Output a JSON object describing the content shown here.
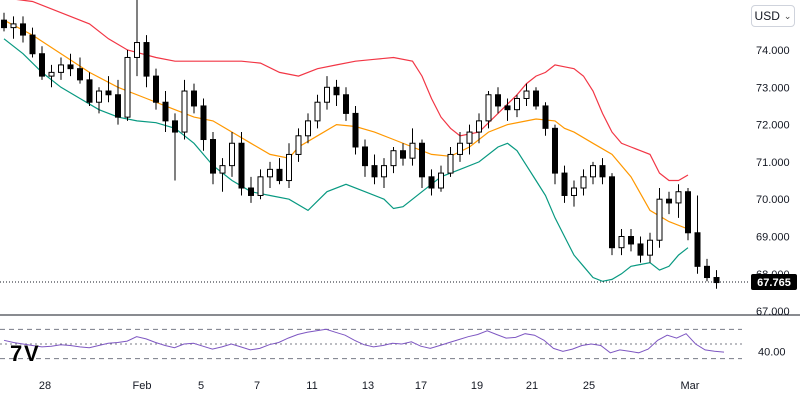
{
  "currency_selector": {
    "label": "USD",
    "chevron_icon": "chevron-down-icon"
  },
  "last_price": "67.765",
  "rsi": {
    "label": "40.00"
  },
  "colors": {
    "candle": "#000000",
    "upper_band": "#f23645",
    "middle_band": "#ff9800",
    "lower_band": "#089981",
    "rsi_line": "#7e57c2",
    "price_line": "#131722"
  },
  "chart_data": [
    {
      "type": "candlestick",
      "title": "",
      "indicators": [
        "Bollinger Bands (upper, middle, lower)"
      ],
      "y_ticks": [
        "74.000",
        "73.000",
        "72.000",
        "71.000",
        "70.000",
        "69.000",
        "68.000",
        "67.000"
      ],
      "ylim": [
        66.85,
        75.2
      ],
      "x_ticks": [
        "28",
        "Feb",
        "5",
        "7",
        "11",
        "13",
        "17",
        "19",
        "21",
        "25",
        "Mar"
      ],
      "grid": false,
      "current_value": 67.765,
      "series": [
        {
          "name": "upper",
          "color": "#f23645",
          "points": [
            [
              0,
              75.4
            ],
            [
              3,
              75.3
            ],
            [
              6,
              75.0
            ],
            [
              9,
              74.7
            ],
            [
              11,
              74.3
            ],
            [
              13,
              74.0
            ],
            [
              16,
              73.8
            ],
            [
              18,
              73.7
            ],
            [
              19,
              73.7
            ],
            [
              22,
              73.7
            ],
            [
              25,
              73.7
            ],
            [
              27,
              73.65
            ],
            [
              29,
              73.4
            ],
            [
              31,
              73.3
            ],
            [
              33,
              73.5
            ],
            [
              35,
              73.6
            ],
            [
              37,
              73.7
            ],
            [
              39,
              73.75
            ],
            [
              41,
              73.8
            ],
            [
              43,
              73.7
            ],
            [
              44,
              73.3
            ],
            [
              45,
              72.7
            ],
            [
              46,
              72.2
            ],
            [
              47,
              71.9
            ],
            [
              48,
              71.7
            ],
            [
              50,
              71.8
            ],
            [
              52,
              72.3
            ],
            [
              54,
              72.8
            ],
            [
              55,
              73.1
            ],
            [
              56,
              73.3
            ],
            [
              57,
              73.4
            ],
            [
              58,
              73.6
            ],
            [
              59,
              73.55
            ],
            [
              60,
              73.5
            ],
            [
              61,
              73.3
            ],
            [
              62,
              72.9
            ],
            [
              63,
              72.3
            ],
            [
              64,
              71.8
            ],
            [
              65,
              71.5
            ],
            [
              66,
              71.4
            ],
            [
              67,
              71.3
            ],
            [
              68,
              71.2
            ],
            [
              69,
              70.7
            ],
            [
              70,
              70.5
            ],
            [
              71,
              70.5
            ],
            [
              72,
              70.65
            ]
          ]
        },
        {
          "name": "middle",
          "color": "#ff9800",
          "points": [
            [
              0,
              74.8
            ],
            [
              3,
              74.4
            ],
            [
              6,
              73.9
            ],
            [
              9,
              73.4
            ],
            [
              12,
              73.0
            ],
            [
              15,
              72.7
            ],
            [
              18,
              72.4
            ],
            [
              20,
              72.2
            ],
            [
              22,
              72.1
            ],
            [
              24,
              71.8
            ],
            [
              26,
              71.5
            ],
            [
              28,
              71.2
            ],
            [
              30,
              71.1
            ],
            [
              31,
              71.4
            ],
            [
              33,
              71.7
            ],
            [
              35,
              72.0
            ],
            [
              37,
              71.95
            ],
            [
              39,
              71.8
            ],
            [
              41,
              71.6
            ],
            [
              43,
              71.4
            ],
            [
              45,
              71.2
            ],
            [
              47,
              71.15
            ],
            [
              49,
              71.4
            ],
            [
              51,
              71.8
            ],
            [
              53,
              72.0
            ],
            [
              55,
              72.1
            ],
            [
              56,
              72.15
            ],
            [
              58,
              72.1
            ],
            [
              59,
              71.9
            ],
            [
              60,
              71.8
            ],
            [
              62,
              71.5
            ],
            [
              64,
              71.2
            ],
            [
              66,
              70.6
            ],
            [
              68,
              69.7
            ],
            [
              70,
              69.4
            ],
            [
              72,
              69.2
            ]
          ]
        },
        {
          "name": "lower",
          "color": "#089981",
          "points": [
            [
              0,
              74.3
            ],
            [
              2,
              73.9
            ],
            [
              4,
              73.4
            ],
            [
              6,
              73.0
            ],
            [
              8,
              72.7
            ],
            [
              10,
              72.4
            ],
            [
              12,
              72.2
            ],
            [
              14,
              72.1
            ],
            [
              16,
              72.05
            ],
            [
              18,
              71.9
            ],
            [
              20,
              71.5
            ],
            [
              22,
              70.9
            ],
            [
              24,
              70.5
            ],
            [
              26,
              70.2
            ],
            [
              28,
              70.1
            ],
            [
              30,
              70.0
            ],
            [
              32,
              69.7
            ],
            [
              34,
              70.2
            ],
            [
              36,
              70.4
            ],
            [
              38,
              70.2
            ],
            [
              40,
              70.0
            ],
            [
              41,
              69.75
            ],
            [
              42,
              69.8
            ],
            [
              44,
              70.2
            ],
            [
              46,
              70.6
            ],
            [
              48,
              70.8
            ],
            [
              50,
              71.0
            ],
            [
              52,
              71.4
            ],
            [
              53,
              71.5
            ],
            [
              54,
              71.3
            ],
            [
              55,
              70.9
            ],
            [
              56,
              70.5
            ],
            [
              57,
              70.1
            ],
            [
              58,
              69.5
            ],
            [
              59,
              69.0
            ],
            [
              60,
              68.5
            ],
            [
              61,
              68.2
            ],
            [
              62,
              67.9
            ],
            [
              63,
              67.8
            ],
            [
              64,
              67.85
            ],
            [
              65,
              68.0
            ],
            [
              66,
              68.2
            ],
            [
              67,
              68.25
            ],
            [
              68,
              68.3
            ],
            [
              69,
              68.1
            ],
            [
              70,
              68.2
            ],
            [
              71,
              68.5
            ],
            [
              72,
              68.7
            ]
          ]
        }
      ],
      "candles": [
        [
          0,
          74.8,
          75.0,
          74.5,
          74.6
        ],
        [
          1,
          74.6,
          74.9,
          74.3,
          74.7
        ],
        [
          2,
          74.7,
          74.9,
          74.2,
          74.4
        ],
        [
          3,
          74.4,
          74.6,
          73.8,
          73.9
        ],
        [
          4,
          73.9,
          74.1,
          73.2,
          73.3
        ],
        [
          5,
          73.3,
          73.6,
          73.0,
          73.4
        ],
        [
          6,
          73.4,
          73.8,
          73.2,
          73.6
        ],
        [
          7,
          73.6,
          73.9,
          73.3,
          73.5
        ],
        [
          8,
          73.5,
          73.8,
          73.1,
          73.2
        ],
        [
          9,
          73.2,
          73.4,
          72.5,
          72.6
        ],
        [
          10,
          72.6,
          73.0,
          72.3,
          72.9
        ],
        [
          11,
          72.9,
          73.3,
          72.6,
          72.8
        ],
        [
          12,
          72.8,
          73.2,
          72.0,
          72.2
        ],
        [
          13,
          72.2,
          74.0,
          72.1,
          73.8
        ],
        [
          14,
          73.8,
          75.4,
          73.3,
          74.2
        ],
        [
          15,
          74.2,
          74.4,
          73.0,
          73.3
        ],
        [
          16,
          73.3,
          73.5,
          72.4,
          72.6
        ],
        [
          17,
          72.6,
          72.9,
          71.8,
          72.1
        ],
        [
          18,
          72.1,
          72.3,
          70.5,
          71.8
        ],
        [
          19,
          71.8,
          73.2,
          71.6,
          72.9
        ],
        [
          20,
          72.9,
          73.1,
          72.3,
          72.5
        ],
        [
          21,
          72.5,
          72.7,
          71.3,
          71.6
        ],
        [
          22,
          71.6,
          71.8,
          70.4,
          70.7
        ],
        [
          23,
          70.7,
          71.1,
          70.2,
          70.9
        ],
        [
          24,
          70.9,
          71.8,
          70.6,
          71.5
        ],
        [
          25,
          71.5,
          71.8,
          70.1,
          70.3
        ],
        [
          26,
          70.3,
          70.6,
          69.9,
          70.1
        ],
        [
          27,
          70.1,
          70.8,
          70.0,
          70.6
        ],
        [
          28,
          70.6,
          71.0,
          70.3,
          70.8
        ],
        [
          29,
          70.8,
          71.1,
          70.4,
          70.5
        ],
        [
          30,
          70.5,
          71.5,
          70.3,
          71.2
        ],
        [
          31,
          71.2,
          71.9,
          71.0,
          71.7
        ],
        [
          32,
          71.7,
          72.3,
          71.5,
          72.1
        ],
        [
          33,
          72.1,
          72.8,
          71.9,
          72.6
        ],
        [
          34,
          72.6,
          73.3,
          72.4,
          73.0
        ],
        [
          35,
          73.0,
          73.2,
          72.5,
          72.8
        ],
        [
          36,
          72.8,
          73.0,
          72.1,
          72.3
        ],
        [
          37,
          72.3,
          72.5,
          71.2,
          71.4
        ],
        [
          38,
          71.4,
          71.6,
          70.6,
          70.9
        ],
        [
          39,
          70.9,
          71.2,
          70.4,
          70.6
        ],
        [
          40,
          70.6,
          71.1,
          70.3,
          70.9
        ],
        [
          41,
          70.9,
          71.4,
          70.7,
          71.3
        ],
        [
          42,
          71.3,
          71.5,
          70.9,
          71.1
        ],
        [
          43,
          71.1,
          71.9,
          70.9,
          71.5
        ],
        [
          44,
          71.5,
          71.6,
          70.3,
          70.6
        ],
        [
          45,
          70.6,
          70.8,
          70.1,
          70.3
        ],
        [
          46,
          70.3,
          70.9,
          70.2,
          70.7
        ],
        [
          47,
          70.7,
          71.4,
          70.6,
          71.2
        ],
        [
          48,
          71.2,
          71.8,
          71.0,
          71.5
        ],
        [
          49,
          71.5,
          72.0,
          71.2,
          71.8
        ],
        [
          50,
          71.8,
          72.3,
          71.5,
          72.1
        ],
        [
          51,
          72.1,
          72.9,
          71.9,
          72.8
        ],
        [
          52,
          72.8,
          73.0,
          72.3,
          72.5
        ],
        [
          53,
          72.5,
          72.7,
          72.1,
          72.4
        ],
        [
          54,
          72.4,
          72.8,
          72.2,
          72.7
        ],
        [
          55,
          72.7,
          73.1,
          72.5,
          72.9
        ],
        [
          56,
          72.9,
          73.0,
          72.4,
          72.5
        ],
        [
          57,
          72.5,
          72.6,
          71.7,
          71.9
        ],
        [
          58,
          71.9,
          72.0,
          70.4,
          70.7
        ],
        [
          59,
          70.7,
          70.9,
          69.9,
          70.1
        ],
        [
          60,
          70.1,
          70.5,
          69.8,
          70.3
        ],
        [
          61,
          70.3,
          70.8,
          70.1,
          70.6
        ],
        [
          62,
          70.6,
          71.0,
          70.4,
          70.9
        ],
        [
          63,
          70.9,
          71.1,
          70.4,
          70.6
        ],
        [
          64,
          70.6,
          70.7,
          68.5,
          68.7
        ],
        [
          65,
          68.7,
          69.2,
          68.5,
          69.0
        ],
        [
          66,
          69.0,
          69.2,
          68.6,
          68.8
        ],
        [
          67,
          68.8,
          69.0,
          68.3,
          68.5
        ],
        [
          68,
          68.5,
          69.1,
          68.3,
          68.9
        ],
        [
          69,
          68.9,
          70.3,
          68.7,
          70.0
        ],
        [
          70,
          70.0,
          70.2,
          69.6,
          69.9
        ],
        [
          71,
          69.9,
          70.4,
          69.5,
          70.2
        ],
        [
          72,
          70.2,
          70.3,
          68.9,
          69.1
        ],
        [
          73,
          69.1,
          70.1,
          68.0,
          68.2
        ],
        [
          74,
          68.2,
          68.4,
          67.8,
          67.9
        ],
        [
          75,
          67.9,
          68.1,
          67.6,
          67.765
        ]
      ]
    },
    {
      "type": "line",
      "title": "",
      "indicator": "RSI",
      "y_ticks": [
        "40.00"
      ],
      "levels": [
        70,
        50,
        30
      ],
      "ylim": [
        20,
        80
      ],
      "series": [
        {
          "name": "",
          "color": "#7e57c2",
          "values": [
            55,
            52,
            50,
            48,
            46,
            47,
            49,
            48,
            46,
            45,
            48,
            51,
            52,
            54,
            60,
            57,
            52,
            48,
            45,
            50,
            51,
            47,
            43,
            46,
            50,
            46,
            42,
            44,
            49,
            52,
            58,
            63,
            66,
            68,
            70,
            66,
            62,
            55,
            49,
            46,
            48,
            51,
            50,
            53,
            47,
            44,
            48,
            52,
            56,
            60,
            63,
            68,
            63,
            58,
            59,
            64,
            62,
            55,
            44,
            40,
            43,
            48,
            50,
            48,
            38,
            42,
            40,
            38,
            43,
            55,
            62,
            58,
            64,
            50,
            42,
            40,
            39
          ]
        }
      ]
    }
  ]
}
